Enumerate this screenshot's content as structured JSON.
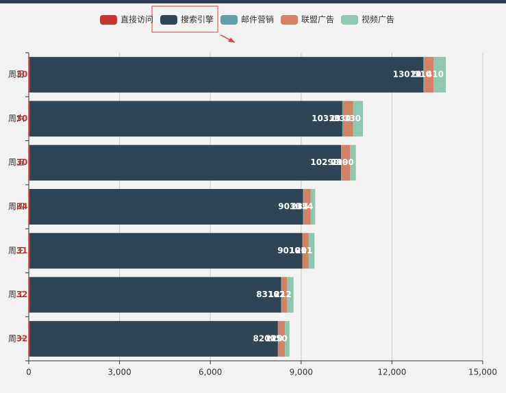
{
  "chart_data": {
    "type": "bar",
    "orientation": "horizontal",
    "stacked": true,
    "categories": [
      "周一",
      "周二",
      "周三",
      "周四",
      "周五",
      "周六",
      "周日"
    ],
    "series": [
      {
        "name": "直接访问",
        "color": "#c23531",
        "values": [
          32,
          32,
          31,
          34,
          30,
          30,
          30
        ]
      },
      {
        "name": "搜索引擎",
        "color": "#2f4554",
        "values": [
          8200,
          8310,
          9010,
          9030,
          10290,
          10330,
          13010
        ]
      },
      {
        "name": "邮件营销",
        "color": "#61a0a8",
        "values": [
          12,
          13,
          10,
          13,
          9,
          23,
          21
        ]
      },
      {
        "name": "联盟广告",
        "color": "#d48265",
        "values": [
          220,
          182,
          191,
          234,
          290,
          330,
          310
        ]
      },
      {
        "name": "视频广告",
        "color": "#91c7ae",
        "values": [
          150,
          212,
          201,
          154,
          190,
          330,
          410
        ]
      }
    ],
    "xlim": [
      0,
      15000
    ],
    "xticks": [
      0,
      {
        "value": 3000,
        "label": "3,000"
      },
      {
        "value": 6000,
        "label": "6,000"
      },
      {
        "value": 9000,
        "label": "9,000"
      },
      {
        "value": 12000,
        "label": "12,000"
      },
      {
        "value": 15000,
        "label": "15,000"
      }
    ],
    "grid": true,
    "legend": "top"
  }
}
